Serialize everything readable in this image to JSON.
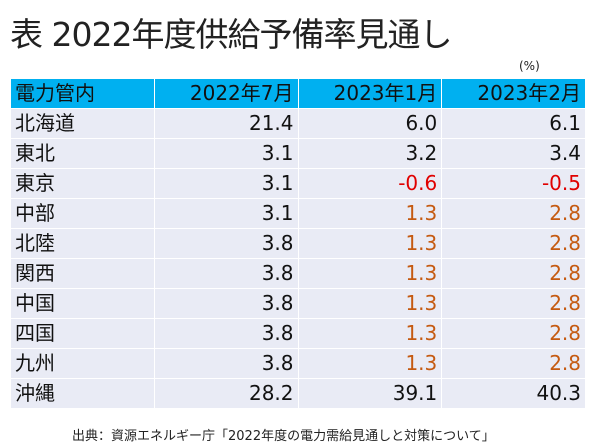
{
  "title": "表 2022年度供給予備率見通し",
  "unit": "(%)",
  "table": {
    "headers": [
      "電力管内",
      "2022年7月",
      "2023年1月",
      "2023年2月"
    ],
    "rows": [
      {
        "area": "北海道",
        "v": [
          "21.4",
          "6.0",
          "6.1"
        ],
        "s": [
          "",
          "",
          ""
        ]
      },
      {
        "area": "東北",
        "v": [
          "3.1",
          "3.2",
          "3.4"
        ],
        "s": [
          "",
          "",
          ""
        ]
      },
      {
        "area": "東京",
        "v": [
          "3.1",
          "-0.6",
          "-0.5"
        ],
        "s": [
          "",
          "neg",
          "neg"
        ]
      },
      {
        "area": "中部",
        "v": [
          "3.1",
          "1.3",
          "2.8"
        ],
        "s": [
          "",
          "warn",
          "warn"
        ]
      },
      {
        "area": "北陸",
        "v": [
          "3.8",
          "1.3",
          "2.8"
        ],
        "s": [
          "",
          "warn",
          "warn"
        ]
      },
      {
        "area": "関西",
        "v": [
          "3.8",
          "1.3",
          "2.8"
        ],
        "s": [
          "",
          "warn",
          "warn"
        ]
      },
      {
        "area": "中国",
        "v": [
          "3.8",
          "1.3",
          "2.8"
        ],
        "s": [
          "",
          "warn",
          "warn"
        ]
      },
      {
        "area": "四国",
        "v": [
          "3.8",
          "1.3",
          "2.8"
        ],
        "s": [
          "",
          "warn",
          "warn"
        ]
      },
      {
        "area": "九州",
        "v": [
          "3.8",
          "1.3",
          "2.8"
        ],
        "s": [
          "",
          "warn",
          "warn"
        ]
      },
      {
        "area": "沖縄",
        "v": [
          "28.2",
          "39.1",
          "40.3"
        ],
        "s": [
          "",
          "",
          ""
        ]
      }
    ]
  },
  "colors": {
    "header": "#00B0F0",
    "body": "#E9EBF5",
    "negative": "#E00000",
    "low": "#C55A11"
  },
  "source": "出典：資源エネルギー庁「2022年度の電力需給見通しと対策について」"
}
